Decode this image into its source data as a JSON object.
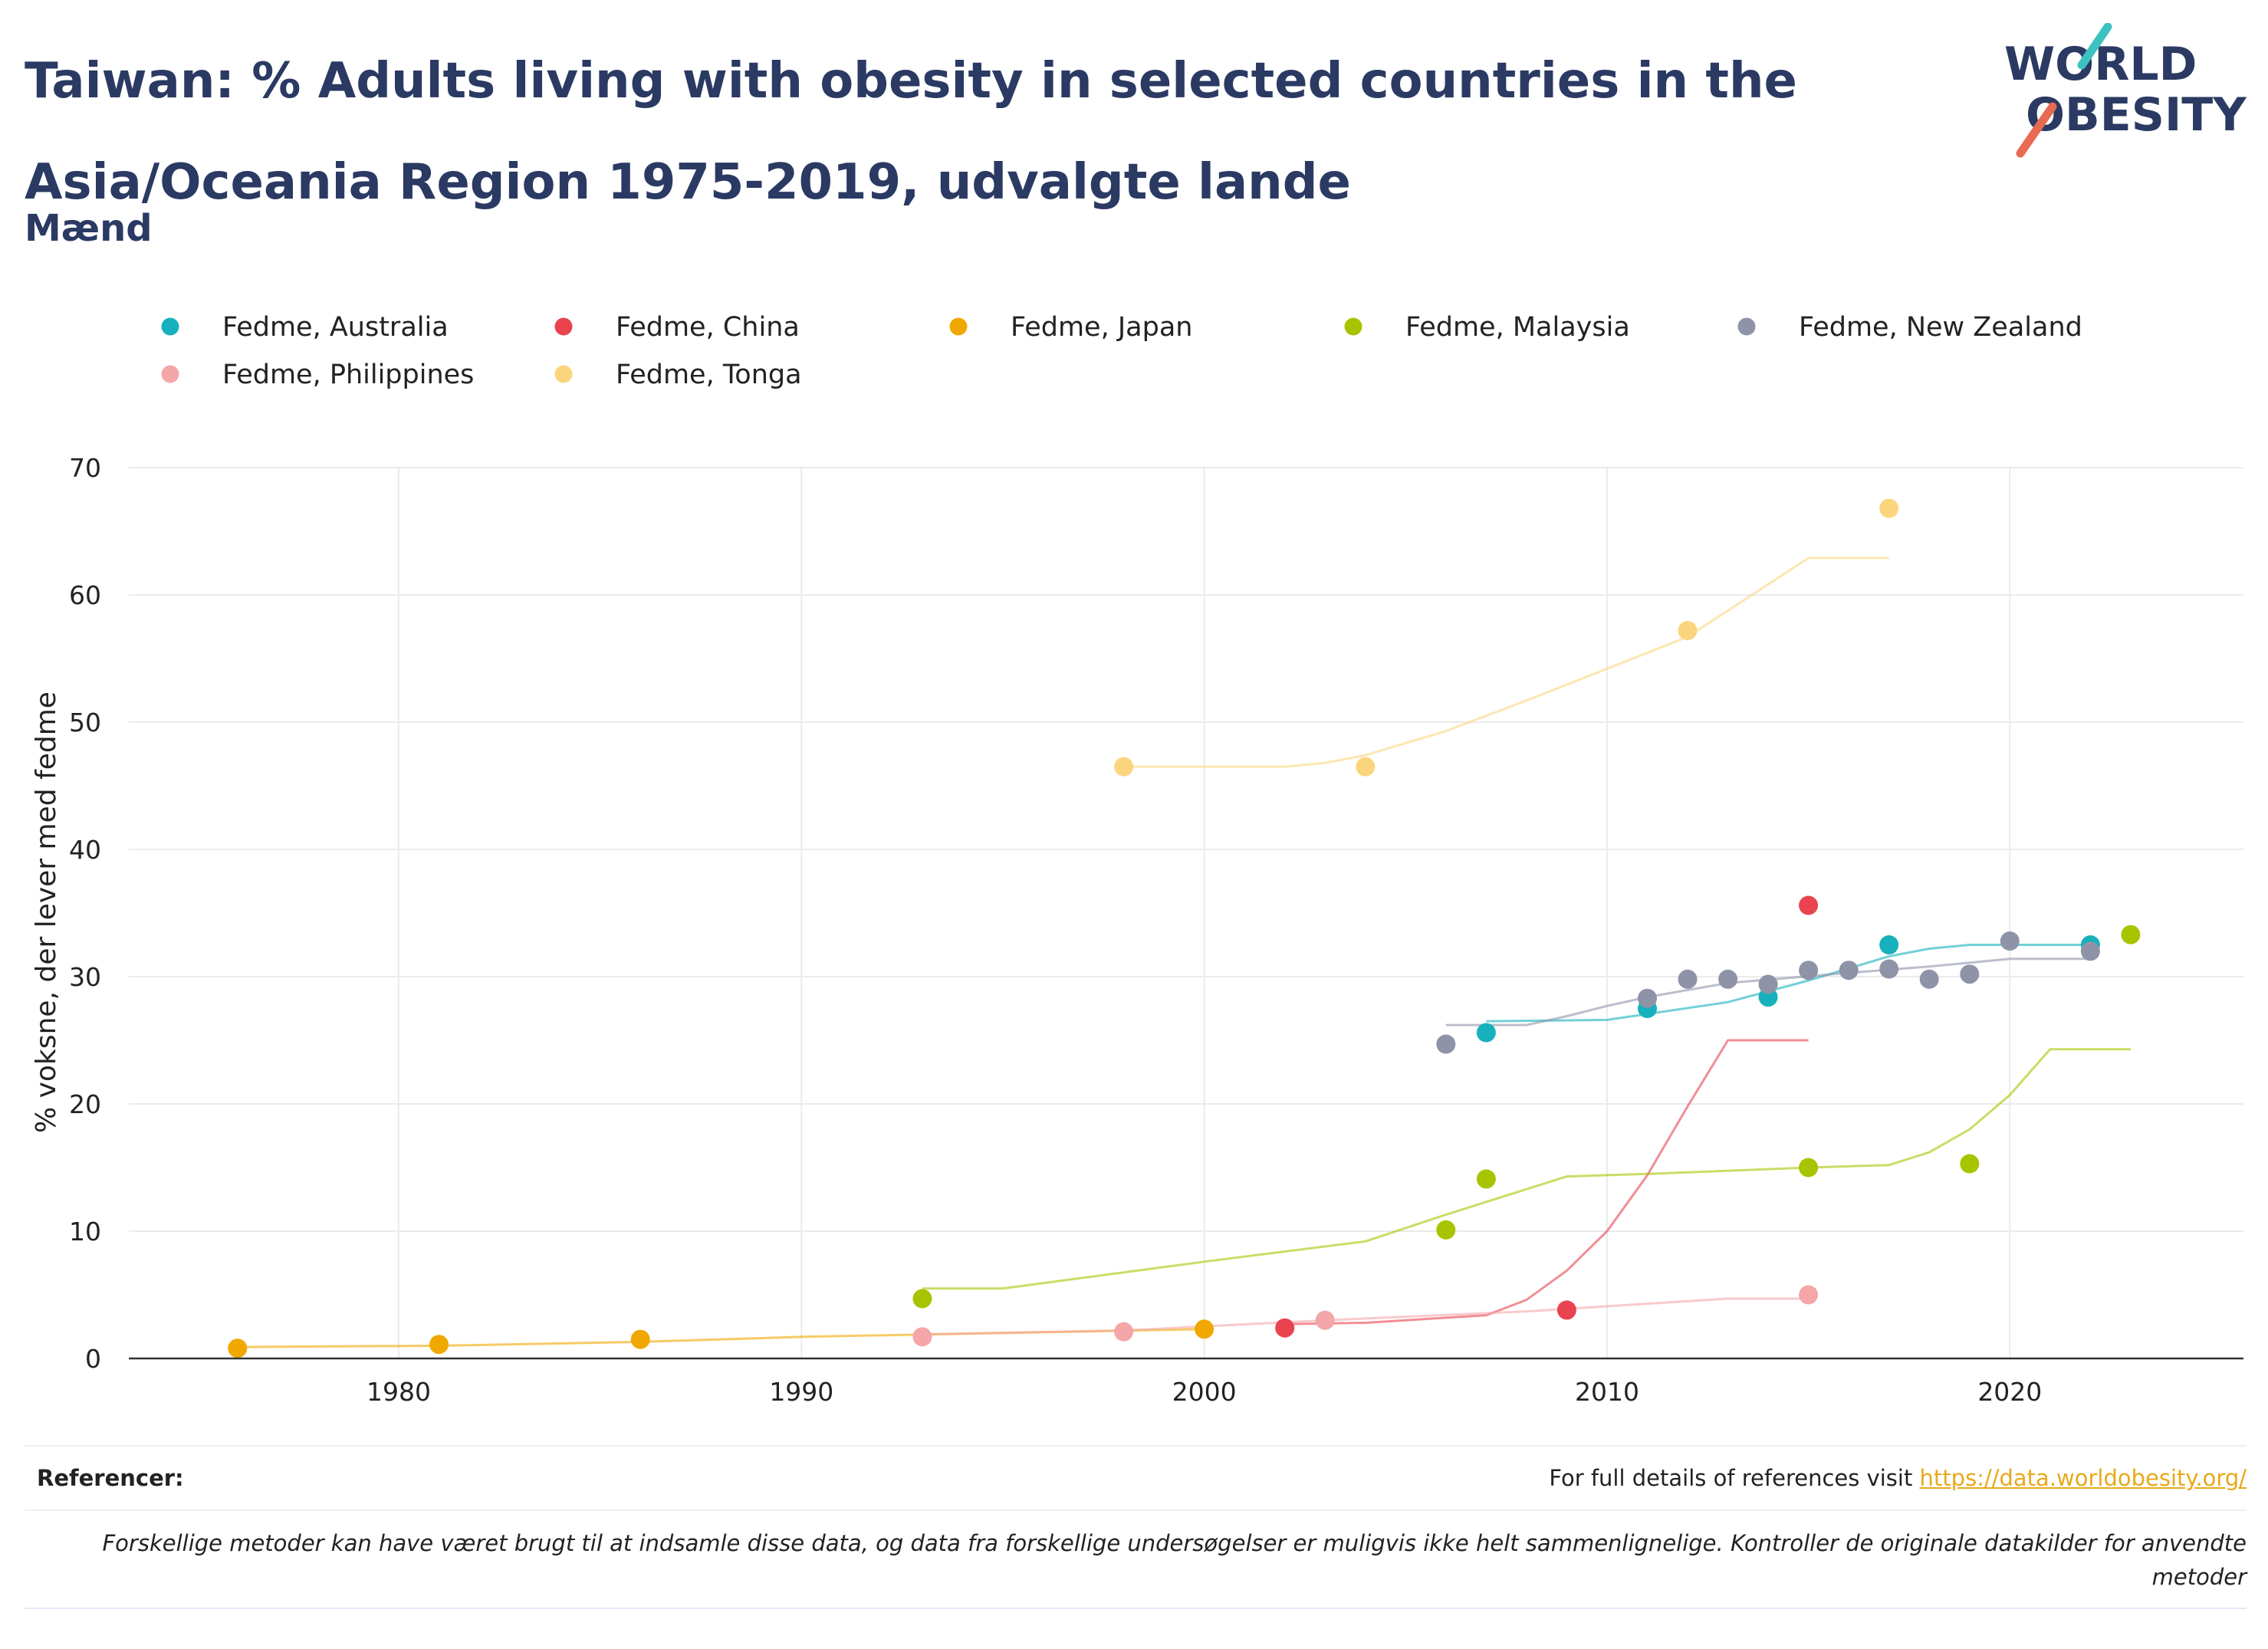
{
  "header": {
    "title": "Taiwan: % Adults living with obesity in selected countries in the Asia/Oceania Region 1975-2019, udvalgte lande",
    "subtitle": "Mænd",
    "logo_text": [
      "WORLD",
      "OBESITY"
    ]
  },
  "footer": {
    "refs_label": "Referencer:",
    "refs_text": "For full details of references visit ",
    "refs_link": "https://data.worldobesity.org/",
    "note": "Forskellige metoder kan have været brugt til at indsamle disse data, og data fra forskellige undersøgelser er muligvis ikke helt sammenlignelige. Kontroller de originale datakilder for anvendte metoder"
  },
  "chart_data": {
    "type": "scatter",
    "ylabel": "% voksne, der lever med fedme",
    "xlim": [
      1973.3,
      2025.8
    ],
    "ylim": [
      0,
      70
    ],
    "xticks": [
      1980,
      1990,
      2000,
      2010,
      2020
    ],
    "yticks": [
      0,
      10,
      20,
      30,
      40,
      50,
      60,
      70
    ],
    "grid": true,
    "legend_position": "top",
    "series": [
      {
        "name": "Fedme, Australia",
        "color": "#16b1bd",
        "points": [
          [
            2007,
            25.6
          ],
          [
            2011,
            27.5
          ],
          [
            2014,
            28.4
          ],
          [
            2017,
            32.5
          ],
          [
            2022,
            32.5
          ]
        ],
        "trend": [
          [
            2007,
            26.5
          ],
          [
            2010,
            26.6
          ],
          [
            2013,
            28.0
          ],
          [
            2015,
            29.7
          ],
          [
            2017,
            31.6
          ],
          [
            2018,
            32.2
          ],
          [
            2019,
            32.5
          ],
          [
            2022,
            32.5
          ]
        ]
      },
      {
        "name": "Fedme, China",
        "color": "#e8434f",
        "points": [
          [
            2002,
            2.4
          ],
          [
            2009,
            3.8
          ],
          [
            2015,
            35.6
          ]
        ],
        "trend": [
          [
            2002,
            2.7
          ],
          [
            2004,
            2.8
          ],
          [
            2007,
            3.4
          ],
          [
            2008,
            4.6
          ],
          [
            2009,
            6.9
          ],
          [
            2010,
            10.0
          ],
          [
            2011,
            14.4
          ],
          [
            2012,
            19.8
          ],
          [
            2013,
            25.0
          ],
          [
            2015,
            25.0
          ]
        ]
      },
      {
        "name": "Fedme, Japan",
        "color": "#f0a800",
        "points": [
          [
            1976,
            0.8
          ],
          [
            1981,
            1.1
          ],
          [
            1986,
            1.5
          ],
          [
            2000,
            2.3
          ]
        ],
        "trend": [
          [
            1976,
            0.9
          ],
          [
            1981,
            1.0
          ],
          [
            1986,
            1.3
          ],
          [
            1990,
            1.7
          ],
          [
            1995,
            2.0
          ],
          [
            2000,
            2.3
          ]
        ]
      },
      {
        "name": "Fedme, Malaysia",
        "color": "#a8c400",
        "points": [
          [
            1993,
            4.7
          ],
          [
            2006,
            10.1
          ],
          [
            2007,
            14.1
          ],
          [
            2015,
            15.0
          ],
          [
            2019,
            15.3
          ],
          [
            2023,
            33.3
          ]
        ],
        "trend": [
          [
            1993,
            5.5
          ],
          [
            1995,
            5.5
          ],
          [
            2000,
            7.6
          ],
          [
            2004,
            9.2
          ],
          [
            2006,
            11.3
          ],
          [
            2009,
            14.3
          ],
          [
            2011,
            14.5
          ],
          [
            2015,
            15.0
          ],
          [
            2017,
            15.2
          ],
          [
            2018,
            16.2
          ],
          [
            2019,
            18.0
          ],
          [
            2020,
            20.7
          ],
          [
            2021,
            24.3
          ],
          [
            2023,
            24.3
          ]
        ]
      },
      {
        "name": "Fedme, New Zealand",
        "color": "#8e93a8",
        "points": [
          [
            2006,
            24.7
          ],
          [
            2011,
            28.3
          ],
          [
            2012,
            29.8
          ],
          [
            2013,
            29.8
          ],
          [
            2014,
            29.4
          ],
          [
            2015,
            30.5
          ],
          [
            2016,
            30.5
          ],
          [
            2017,
            30.6
          ],
          [
            2018,
            29.8
          ],
          [
            2019,
            30.2
          ],
          [
            2020,
            32.8
          ],
          [
            2022,
            32.0
          ]
        ],
        "trend": [
          [
            2006,
            26.2
          ],
          [
            2008,
            26.2
          ],
          [
            2009,
            26.9
          ],
          [
            2010,
            27.7
          ],
          [
            2011,
            28.4
          ],
          [
            2013,
            29.5
          ],
          [
            2016,
            30.3
          ],
          [
            2018,
            30.8
          ],
          [
            2020,
            31.4
          ],
          [
            2022,
            31.4
          ]
        ]
      },
      {
        "name": "Fedme, Philippines",
        "color": "#f4a6a8",
        "points": [
          [
            1993,
            1.7
          ],
          [
            1998,
            2.1
          ],
          [
            2003,
            3.0
          ],
          [
            2015,
            5.0
          ]
        ],
        "trend": [
          [
            1993,
            1.9
          ],
          [
            1998,
            2.2
          ],
          [
            2003,
            3.0
          ],
          [
            2008,
            3.7
          ],
          [
            2013,
            4.7
          ],
          [
            2015,
            4.7
          ]
        ]
      },
      {
        "name": "Fedme, Tonga",
        "color": "#fbd57e",
        "points": [
          [
            1998,
            46.5
          ],
          [
            2004,
            46.5
          ],
          [
            2012,
            57.2
          ],
          [
            2017,
            66.8
          ]
        ],
        "trend": [
          [
            1998,
            46.5
          ],
          [
            2002,
            46.5
          ],
          [
            2003,
            46.8
          ],
          [
            2004,
            47.4
          ],
          [
            2006,
            49.3
          ],
          [
            2008,
            51.7
          ],
          [
            2010,
            54.2
          ],
          [
            2012,
            56.7
          ],
          [
            2015,
            62.9
          ],
          [
            2017,
            62.9
          ]
        ]
      }
    ]
  }
}
